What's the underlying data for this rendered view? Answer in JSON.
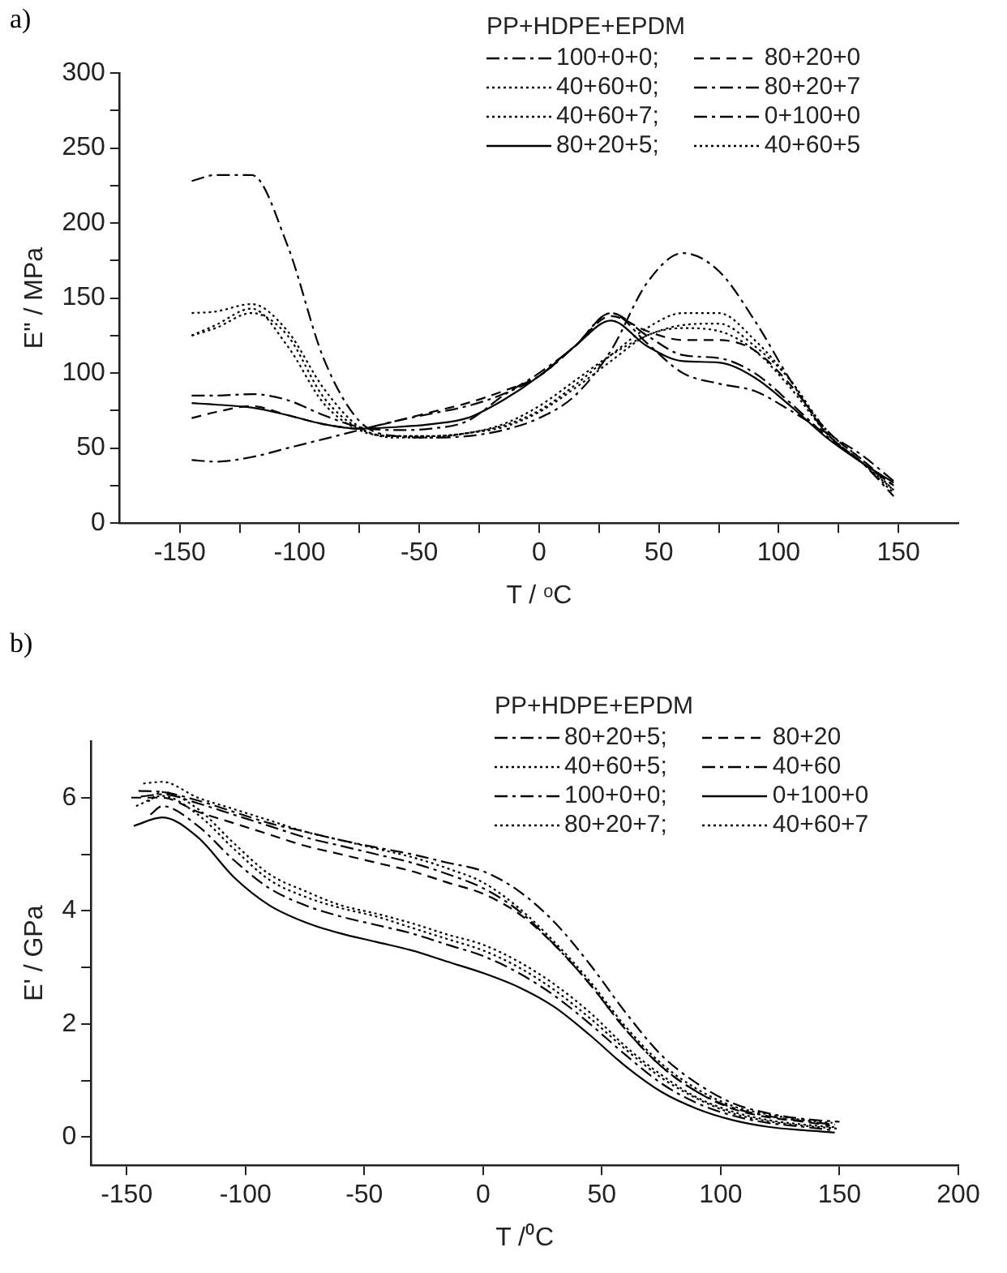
{
  "chart_data": [
    {
      "type": "line",
      "annotations": [
        "a)"
      ],
      "ylabel": "E\" / MPa",
      "xlabel": "T / ᵒC",
      "legend_title": "PP+HDPE+EPDM",
      "legend": "top right",
      "grid": false,
      "marker": "none",
      "xlim": [
        -175,
        175
      ],
      "xticks": [
        -150,
        {
          "value": -125,
          "label": null
        },
        -100,
        {
          "value": -75,
          "label": null
        },
        -50,
        {
          "value": -25,
          "label": null
        },
        0,
        {
          "value": 25,
          "label": null
        },
        50,
        {
          "value": 75,
          "label": null
        },
        100,
        {
          "value": 125,
          "label": null
        },
        150
      ],
      "ylim": [
        0,
        300
      ],
      "yticks": [
        0,
        {
          "value": 25,
          "label": null
        },
        50,
        {
          "value": 75,
          "label": null
        },
        100,
        {
          "value": 125,
          "label": null
        },
        150,
        {
          "value": 175,
          "label": null
        },
        200,
        {
          "value": 225,
          "label": null
        },
        250,
        {
          "value": 275,
          "label": null
        },
        300
      ],
      "x": [
        -145,
        -135,
        -120,
        -105,
        -90,
        -75,
        -60,
        -45,
        -30,
        -15,
        0,
        15,
        30,
        45,
        60,
        75,
        90,
        105,
        120,
        135,
        148
      ],
      "series": [
        {
          "name": "100+0+0;",
          "color": "#000000",
          "line_style": "dashdot",
          "values": [
            42,
            41,
            44,
            50,
            56,
            62,
            68,
            73,
            78,
            86,
            98,
            118,
            140,
            120,
            100,
            93,
            88,
            75,
            60,
            45,
            28
          ]
        },
        {
          "name": "80+20+0",
          "color": "#000000",
          "line_style": "dashed",
          "values": [
            70,
            74,
            78,
            72,
            66,
            63,
            68,
            74,
            80,
            88,
            98,
            118,
            138,
            128,
            122,
            122,
            115,
            92,
            62,
            42,
            25
          ]
        },
        {
          "name": "40+60+0;",
          "color": "#000000",
          "line_style": "dotted",
          "values": [
            125,
            132,
            143,
            118,
            80,
            62,
            58,
            58,
            60,
            66,
            78,
            95,
            112,
            125,
            132,
            133,
            118,
            95,
            60,
            40,
            20
          ]
        },
        {
          "name": "80+20+7",
          "color": "#000000",
          "line_style": "dashdot",
          "values": [
            85,
            85,
            86,
            82,
            72,
            64,
            62,
            63,
            68,
            85,
            100,
            118,
            140,
            125,
            112,
            110,
            100,
            80,
            58,
            40,
            25
          ]
        },
        {
          "name": "40+60+7;",
          "color": "#000000",
          "line_style": "dotted",
          "values": [
            140,
            141,
            146,
            128,
            90,
            64,
            57,
            57,
            60,
            65,
            75,
            92,
            112,
            130,
            140,
            140,
            122,
            95,
            62,
            42,
            22
          ]
        },
        {
          "name": "0+100+0",
          "color": "#000000",
          "line_style": "dashdot",
          "values": [
            228,
            232,
            232,
            185,
            110,
            68,
            58,
            57,
            58,
            62,
            70,
            85,
            115,
            160,
            180,
            168,
            135,
            95,
            60,
            40,
            18
          ]
        },
        {
          "name": "80+20+5;",
          "color": "#000000",
          "line_style": "solid",
          "values": [
            80,
            79,
            77,
            72,
            66,
            63,
            64,
            66,
            70,
            82,
            98,
            118,
            135,
            118,
            108,
            107,
            97,
            78,
            57,
            40,
            27
          ]
        },
        {
          "name": "40+60+5",
          "color": "#000000",
          "line_style": "dotted",
          "values": [
            125,
            130,
            140,
            125,
            84,
            63,
            58,
            58,
            60,
            64,
            74,
            90,
            108,
            125,
            130,
            128,
            115,
            90,
            60,
            40,
            22
          ]
        }
      ]
    },
    {
      "type": "line",
      "annotations": [
        "b)"
      ],
      "ylabel": "E' / GPa",
      "xlabel": "T /⁰C",
      "legend_title": "PP+HDPE+EPDM",
      "legend": "top right",
      "grid": false,
      "marker": "none",
      "xlim": [
        -165,
        200
      ],
      "xticks": [
        -150,
        -100,
        -50,
        0,
        50,
        100,
        150,
        200
      ],
      "ylim": [
        -0.5,
        7
      ],
      "yticks": [
        0,
        {
          "value": 1,
          "label": null
        },
        2,
        {
          "value": 3,
          "label": null
        },
        4,
        {
          "value": 5,
          "label": null
        },
        6
      ],
      "series": [
        {
          "name": "80+20+5;",
          "color": "#000000",
          "line_style": "dashdot",
          "x": [
            -144,
            -135,
            -120,
            -105,
            -90,
            -75,
            -60,
            -45,
            -30,
            -15,
            0,
            15,
            30,
            45,
            60,
            75,
            90,
            105,
            120,
            135,
            148
          ],
          "values": [
            6.02,
            6.06,
            5.9,
            5.7,
            5.5,
            5.3,
            5.15,
            5.0,
            4.85,
            4.65,
            4.4,
            4.0,
            3.4,
            2.7,
            1.9,
            1.25,
            0.8,
            0.52,
            0.37,
            0.28,
            0.22
          ]
        },
        {
          "name": "80+20",
          "color": "#000000",
          "line_style": "dashed",
          "x": [
            -148,
            -135,
            -120,
            -105,
            -90,
            -75,
            -60,
            -45,
            -30,
            -15,
            0,
            15,
            30,
            45,
            60,
            75,
            90,
            105,
            120,
            135,
            146
          ],
          "values": [
            6.0,
            6.0,
            5.75,
            5.55,
            5.35,
            5.15,
            5.0,
            4.85,
            4.7,
            4.5,
            4.3,
            3.95,
            3.4,
            2.7,
            1.9,
            1.25,
            0.8,
            0.5,
            0.35,
            0.27,
            0.2
          ]
        },
        {
          "name": "40+60+5;",
          "color": "#000000",
          "line_style": "dotted",
          "x": [
            -146,
            -135,
            -120,
            -105,
            -90,
            -75,
            -60,
            -45,
            -30,
            -15,
            0,
            15,
            30,
            45,
            60,
            75,
            90,
            105,
            120,
            135,
            149
          ],
          "values": [
            5.85,
            6.03,
            5.7,
            5.1,
            4.55,
            4.25,
            4.05,
            3.9,
            3.7,
            3.5,
            3.3,
            3.0,
            2.6,
            2.1,
            1.55,
            1.05,
            0.68,
            0.42,
            0.28,
            0.2,
            0.15
          ]
        },
        {
          "name": "40+60",
          "color": "#000000",
          "line_style": "dashdot",
          "x": [
            -140,
            -135,
            -120,
            -105,
            -90,
            -75,
            -60,
            -45,
            -30,
            -15,
            0,
            15,
            30,
            45,
            60,
            75,
            90,
            105,
            120,
            135,
            147
          ],
          "values": [
            5.7,
            5.85,
            5.5,
            4.9,
            4.4,
            4.1,
            3.9,
            3.75,
            3.6,
            3.4,
            3.2,
            2.9,
            2.5,
            2.0,
            1.45,
            0.95,
            0.6,
            0.38,
            0.25,
            0.18,
            0.12
          ]
        },
        {
          "name": "100+0+0;",
          "color": "#000000",
          "line_style": "dashdot",
          "x": [
            -145,
            -135,
            -120,
            -105,
            -90,
            -75,
            -60,
            -45,
            -30,
            -15,
            0,
            15,
            30,
            45,
            60,
            75,
            90,
            105,
            120,
            135,
            150
          ],
          "values": [
            6.12,
            6.1,
            5.95,
            5.75,
            5.55,
            5.4,
            5.25,
            5.12,
            5.0,
            4.85,
            4.7,
            4.35,
            3.8,
            3.05,
            2.2,
            1.45,
            0.95,
            0.6,
            0.42,
            0.32,
            0.27
          ]
        },
        {
          "name": "0+100+0",
          "color": "#000000",
          "line_style": "solid",
          "x": [
            -147,
            -135,
            -120,
            -105,
            -90,
            -75,
            -60,
            -45,
            -30,
            -15,
            0,
            15,
            30,
            45,
            60,
            75,
            90,
            105,
            120,
            135,
            148
          ],
          "values": [
            5.5,
            5.65,
            5.3,
            4.6,
            4.1,
            3.8,
            3.6,
            3.45,
            3.3,
            3.1,
            2.9,
            2.65,
            2.3,
            1.8,
            1.25,
            0.8,
            0.5,
            0.3,
            0.18,
            0.12,
            0.08
          ]
        },
        {
          "name": "80+20+7;",
          "color": "#000000",
          "line_style": "dotted",
          "x": [
            -143,
            -135,
            -120,
            -105,
            -90,
            -75,
            -60,
            -45,
            -30,
            -15,
            0,
            15,
            30,
            45,
            60,
            75,
            90,
            105,
            120,
            135,
            147
          ],
          "values": [
            6.25,
            6.28,
            6.0,
            5.8,
            5.6,
            5.4,
            5.25,
            5.1,
            4.95,
            4.75,
            4.5,
            4.05,
            3.45,
            2.75,
            1.95,
            1.3,
            0.85,
            0.55,
            0.4,
            0.3,
            0.25
          ]
        },
        {
          "name": "40+60+7",
          "color": "#000000",
          "line_style": "dotted",
          "x": [
            -141,
            -135,
            -120,
            -105,
            -90,
            -75,
            -60,
            -45,
            -30,
            -15,
            0,
            15,
            30,
            45,
            60,
            75,
            90,
            105,
            120,
            135,
            149
          ],
          "values": [
            5.93,
            6.1,
            5.8,
            5.2,
            4.65,
            4.35,
            4.1,
            3.95,
            3.78,
            3.58,
            3.4,
            3.1,
            2.7,
            2.2,
            1.6,
            1.1,
            0.7,
            0.45,
            0.3,
            0.22,
            0.17
          ]
        }
      ]
    }
  ]
}
